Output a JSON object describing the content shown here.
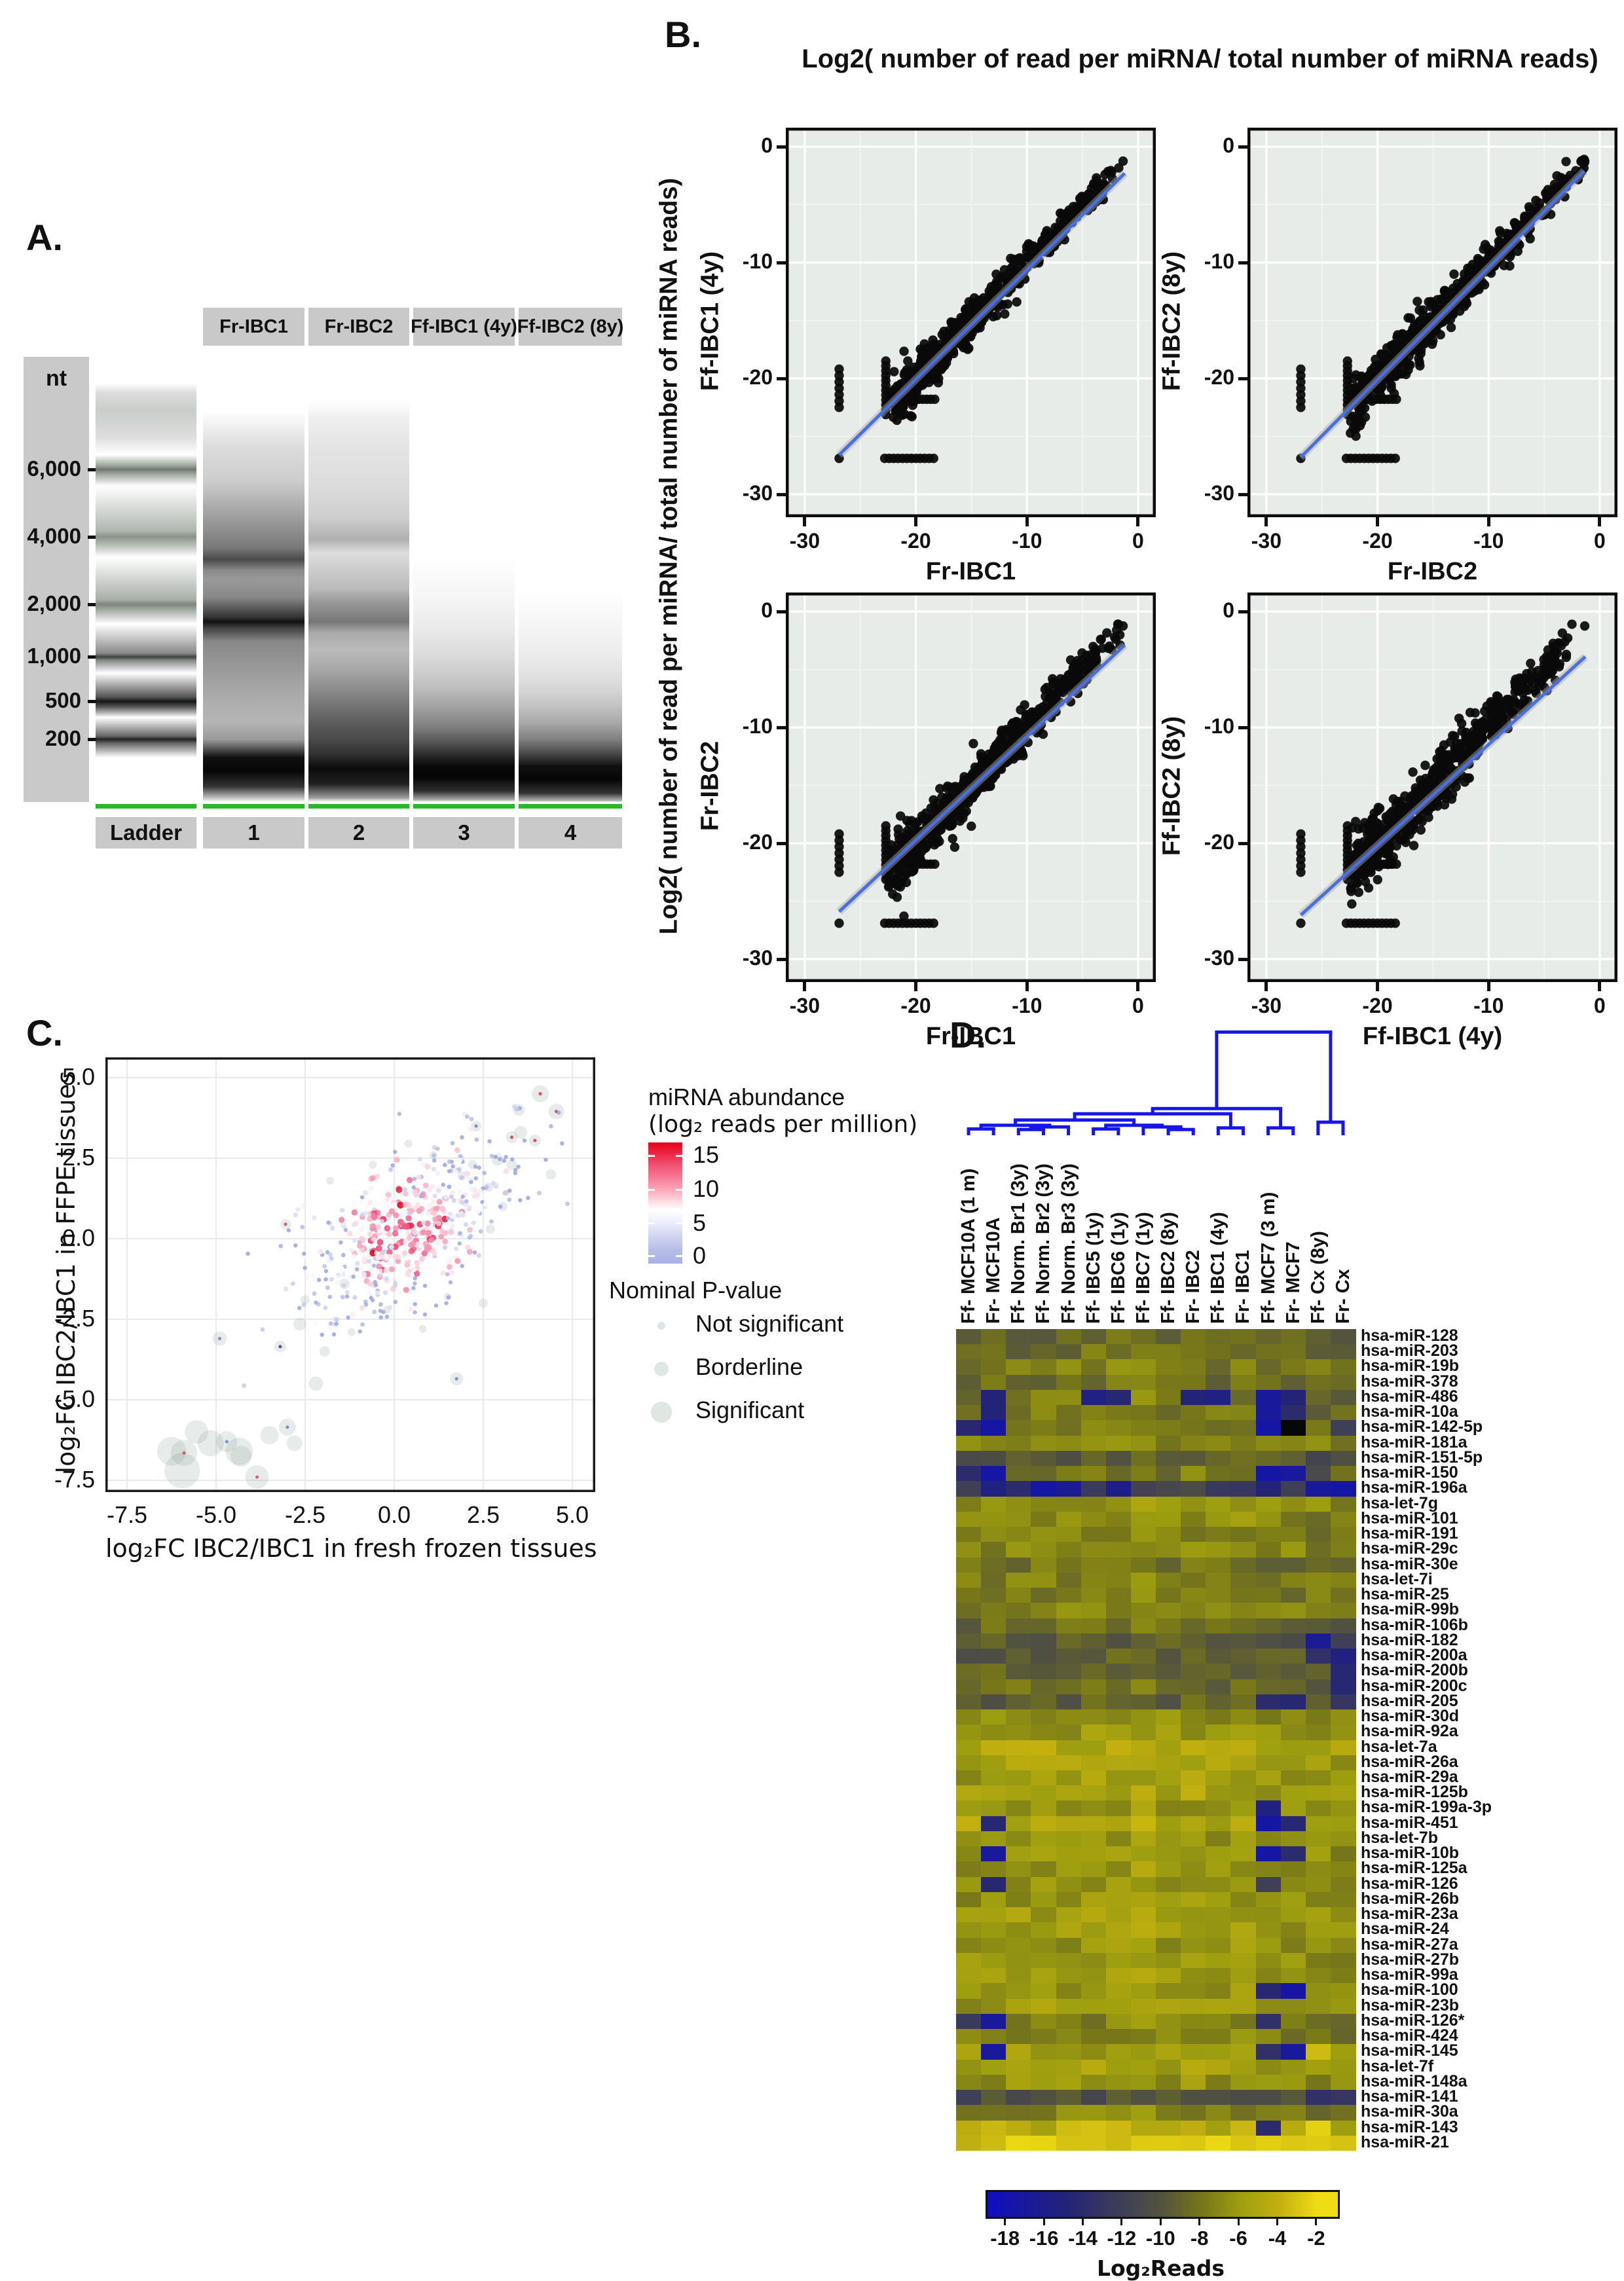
{
  "panel_a": {
    "label": "A.",
    "unit_label": "nt",
    "ladder_values": [
      "6,000",
      "4,000",
      "2,000",
      "1,000",
      "500",
      "200"
    ],
    "lane_headers": [
      "Fr-IBC1",
      "Fr-IBC2",
      "Ff-IBC1 (4y)",
      "Ff-IBC2 (8y)"
    ],
    "lane_footers": [
      "Ladder",
      "1",
      "2",
      "3",
      "4"
    ],
    "marker_line_color": "#2db52d"
  },
  "panel_b": {
    "label": "B.",
    "title": "Log2( number of read per miRNA/ total number of miRNA reads)",
    "shared_ylabel": "Log2( number of read per miRNA/ total number of miRNA reads)",
    "chart_data": {
      "type": "scatter",
      "axis_ticks": [
        0,
        -10,
        -20,
        -30
      ],
      "axis_range": [
        -31.7,
        1.6
      ],
      "point_color": "#0a0a0a",
      "line_color": "#4a6fe3",
      "plot_bg": "#e7ece8",
      "subplots": [
        {
          "x_label": "Fr-IBC1",
          "y_label": "Ff-IBC1 (4y)",
          "line": [
            -26.9,
            -26.6,
            -1.2,
            -2.3
          ],
          "sigma": 1.0
        },
        {
          "x_label": "Fr-IBC2",
          "y_label": "Ff-IBC2 (8y)",
          "line": [
            -26.9,
            -26.8,
            -1.4,
            -2.1
          ],
          "sigma": 1.0
        },
        {
          "x_label": "Fr-IBC1",
          "y_label": "Fr-IBC2",
          "line": [
            -26.9,
            -25.9,
            -1.2,
            -2.9
          ],
          "sigma": 1.15
        },
        {
          "x_label": "Ff-IBC1 (4y)",
          "y_label": "Ff-IBC2 (8y)",
          "line": [
            -26.9,
            -26.2,
            -1.3,
            -3.9
          ],
          "sigma": 1.35
        }
      ],
      "cloud": {
        "n": 620,
        "x_min": -22.5,
        "x_max": -1.2,
        "stripe_x": [
          -26.9,
          -22.7
        ],
        "quantized_row_y": [
          -21.8,
          -26.9
        ],
        "note": "dense correlated diagonal cloud, discrete low-count stripes"
      }
    }
  },
  "panel_c": {
    "label": "C.",
    "chart_data": {
      "type": "scatter",
      "x_label": "log₂FC IBC2/IBC1 in fresh frozen tissues",
      "y_label": "log₂FC IBC2/IBC1 in FFPE tissues",
      "x_ticks": [
        "-7.5",
        "-5.0",
        "-2.5",
        "0.0",
        "2.5",
        "5.0"
      ],
      "y_ticks": [
        "5.0",
        "2.5",
        "0.0",
        "-2.5",
        "-5.0",
        "-7.5"
      ],
      "x_range": [
        -8.1,
        5.65
      ],
      "y_range": [
        -8.15,
        5.65
      ],
      "cloud": {
        "n": 560,
        "center": [
          0.3,
          0.3
        ],
        "sd": [
          1.55,
          1.05
        ],
        "slope": 0.55
      },
      "bubbles": [
        [
          -5.95,
          -7.2,
          27,
          null
        ],
        [
          -6.25,
          -6.6,
          22,
          null
        ],
        [
          -5.9,
          -6.65,
          20,
          "#cc4455"
        ],
        [
          -5.55,
          -6.0,
          18,
          null
        ],
        [
          -5.15,
          -6.35,
          20,
          null
        ],
        [
          -4.7,
          -6.3,
          16,
          "#6677cc"
        ],
        [
          -4.35,
          -6.6,
          21,
          null
        ],
        [
          -4.3,
          -6.75,
          16,
          null
        ],
        [
          -3.85,
          -7.4,
          18,
          "#cc4455"
        ],
        [
          -3.5,
          -6.1,
          14,
          null
        ],
        [
          -3.0,
          -5.85,
          13,
          "#6677cc"
        ],
        [
          -2.8,
          -6.35,
          12,
          null
        ],
        [
          -4.9,
          -3.1,
          11,
          "#6677cc"
        ],
        [
          -3.2,
          -3.35,
          9,
          "#333366"
        ],
        [
          -2.65,
          -2.65,
          10,
          null
        ],
        [
          -2.2,
          -4.5,
          11,
          null
        ],
        [
          -1.95,
          -3.5,
          8,
          null
        ],
        [
          -1.4,
          -1.4,
          8,
          null
        ],
        [
          1.75,
          -4.35,
          10,
          "#6677cc"
        ],
        [
          2.5,
          -2.0,
          7,
          null
        ],
        [
          -3.05,
          0.45,
          8,
          "#cc4455"
        ],
        [
          4.1,
          4.5,
          13,
          "#cc3344"
        ],
        [
          4.55,
          3.95,
          12,
          "#cc3344"
        ],
        [
          3.55,
          3.3,
          10,
          null
        ],
        [
          3.3,
          3.15,
          9,
          "#cc3344"
        ],
        [
          2.9,
          2.45,
          9,
          null
        ],
        [
          2.3,
          3.5,
          8,
          "#6677cc"
        ],
        [
          3.95,
          3.05,
          9,
          "#cc3344"
        ],
        [
          4.4,
          2.0,
          8,
          null
        ],
        [
          3.05,
          1.0,
          7,
          null
        ],
        [
          2.2,
          2.3,
          7,
          null
        ],
        [
          1.9,
          1.95,
          7,
          null
        ],
        [
          3.5,
          4.0,
          9,
          null
        ],
        [
          2.65,
          1.6,
          7,
          null
        ],
        [
          0.4,
          2.95,
          6,
          null
        ],
        [
          -0.6,
          2.3,
          6,
          null
        ],
        [
          1.1,
          2.6,
          6,
          null
        ],
        [
          -1.8,
          1.8,
          6,
          null
        ],
        [
          -2.5,
          -1.9,
          7,
          null
        ],
        [
          0.8,
          -2.8,
          6,
          null
        ],
        [
          1.5,
          -1.8,
          6,
          null
        ],
        [
          2.7,
          0.3,
          7,
          null
        ],
        [
          3.3,
          2.3,
          8,
          null
        ],
        [
          -0.2,
          -2.2,
          6,
          null
        ],
        [
          -1.2,
          -2.9,
          6,
          null
        ]
      ]
    },
    "legend": {
      "abundance_title": "miRNA abundance",
      "abundance_subtitle": "(log₂ reads per million)",
      "abundance_ticks": [
        "15",
        "10",
        "5",
        "0"
      ],
      "pvalue_title": "Nominal P-value",
      "pvalue_items": [
        "Not significant",
        "Borderline",
        "Significant"
      ],
      "bubble_color": "#dfe7e3"
    }
  },
  "panel_d": {
    "label": "D.",
    "dendrogram_color": "#1616e8",
    "columns": [
      "Ff- MCF10A (1 m)",
      "Fr- MCF10A",
      "Ff- Norm. Br1 (3y)",
      "Ff- Norm. Br2 (3y)",
      "Ff- Norm. Br3 (3y)",
      "Ff- IBC5 (1y)",
      "Ff- IBC6 (1y)",
      "Ff- IBC7 (1y)",
      "Ff- IBC2 (8y)",
      "Fr- IBC2",
      "Ff- IBC1 (4y)",
      "Fr- IBC1",
      "Ff- MCF7 (3 m)",
      "Fr- MCF7",
      "Ff- Cx (8y)",
      "Fr- Cx"
    ],
    "rows": [
      "hsa-miR-128",
      "hsa-miR-203",
      "hsa-miR-19b",
      "hsa-miR-378",
      "hsa-miR-486",
      "hsa-miR-10a",
      "hsa-miR-142-5p",
      "hsa-miR-181a",
      "hsa-miR-151-5p",
      "hsa-miR-150",
      "hsa-miR-196a",
      "hsa-let-7g",
      "hsa-miR-101",
      "hsa-miR-191",
      "hsa-miR-29c",
      "hsa-miR-30e",
      "hsa-let-7i",
      "hsa-miR-25",
      "hsa-miR-99b",
      "hsa-miR-106b",
      "hsa-miR-182",
      "hsa-miR-200a",
      "hsa-miR-200b",
      "hsa-miR-200c",
      "hsa-miR-205",
      "hsa-miR-30d",
      "hsa-miR-92a",
      "hsa-let-7a",
      "hsa-miR-26a",
      "hsa-miR-29a",
      "hsa-miR-125b",
      "hsa-miR-199a-3p",
      "hsa-miR-451",
      "hsa-let-7b",
      "hsa-miR-10b",
      "hsa-miR-125a",
      "hsa-miR-126",
      "hsa-miR-26b",
      "hsa-miR-23a",
      "hsa-miR-24",
      "hsa-miR-27a",
      "hsa-miR-27b",
      "hsa-miR-99a",
      "hsa-miR-100",
      "hsa-miR-23b",
      "hsa-miR-126*",
      "hsa-miR-424",
      "hsa-miR-145",
      "hsa-let-7f",
      "hsa-miR-148a",
      "hsa-miR-141",
      "hsa-miR-30a",
      "hsa-miR-143",
      "hsa-miR-21"
    ],
    "heatmap": {
      "type": "heatmap",
      "value_label": "Log₂Reads",
      "colorbar_ticks": [
        "-18",
        "-16",
        "-14",
        "-12",
        "-10",
        "-8",
        "-6",
        "-4",
        "-2"
      ],
      "row_base": [
        -9,
        -8.5,
        -7.5,
        -8.5,
        -8,
        -8,
        -7.5,
        -7,
        -9.5,
        -8,
        -12,
        -6.5,
        -7,
        -7.5,
        -7,
        -8,
        -7.5,
        -7.5,
        -7,
        -8.5,
        -9.5,
        -9.5,
        -9,
        -8.5,
        -9.5,
        -7,
        -6.5,
        -5,
        -5.5,
        -6,
        -5.5,
        -6.5,
        -5.5,
        -6.5,
        -6,
        -6.5,
        -6.5,
        -6.5,
        -6,
        -6,
        -6.5,
        -6,
        -6,
        -6.5,
        -6,
        -7.5,
        -7.5,
        -6,
        -5.5,
        -6.5,
        -10.5,
        -7.5,
        -4.5,
        -3.2
      ],
      "col_offset": [
        -0.4,
        -0.2,
        0,
        0,
        0,
        0.2,
        0.2,
        0.6,
        0,
        0.3,
        -0.2,
        0.2,
        -0.4,
        -0.4,
        -0.6,
        -0.9
      ],
      "special_cells": [
        [
          5,
          2,
          -15
        ],
        [
          5,
          6,
          -15.5
        ],
        [
          5,
          7,
          -14.5
        ],
        [
          5,
          10,
          -15
        ],
        [
          5,
          11,
          -15.5
        ],
        [
          5,
          13,
          -17
        ],
        [
          5,
          14,
          -15
        ],
        [
          6,
          2,
          -15
        ],
        [
          6,
          13,
          -17
        ],
        [
          6,
          14,
          -14
        ],
        [
          7,
          1,
          -14.5
        ],
        [
          7,
          2,
          -17.5
        ],
        [
          7,
          13,
          -17.5
        ],
        [
          7,
          14,
          -19.4
        ],
        [
          7,
          16,
          -12
        ],
        [
          9,
          1,
          -11
        ],
        [
          9,
          15,
          -11.5
        ],
        [
          10,
          1,
          -14
        ],
        [
          10,
          2,
          -17.5
        ],
        [
          10,
          13,
          -17.5
        ],
        [
          10,
          14,
          -17
        ],
        [
          10,
          15,
          -11
        ],
        [
          11,
          1,
          -12
        ],
        [
          11,
          2,
          -15.5
        ],
        [
          11,
          3,
          -14
        ],
        [
          11,
          4,
          -17.5
        ],
        [
          11,
          5,
          -16.5
        ],
        [
          11,
          7,
          -16
        ],
        [
          11,
          13,
          -15
        ],
        [
          11,
          14,
          -12
        ],
        [
          11,
          15,
          -17
        ],
        [
          11,
          16,
          -17.5
        ],
        [
          21,
          15,
          -16.5
        ],
        [
          21,
          16,
          -12
        ],
        [
          22,
          15,
          -13.5
        ],
        [
          22,
          16,
          -15.5
        ],
        [
          23,
          16,
          -14.5
        ],
        [
          24,
          16,
          -14.5
        ],
        [
          25,
          13,
          -14
        ],
        [
          25,
          14,
          -14.5
        ],
        [
          25,
          16,
          -13
        ],
        [
          32,
          13,
          -15.5
        ],
        [
          33,
          1,
          -4
        ],
        [
          33,
          2,
          -14.5
        ],
        [
          33,
          13,
          -17.5
        ],
        [
          33,
          14,
          -14.5
        ],
        [
          35,
          2,
          -17
        ],
        [
          35,
          13,
          -17.5
        ],
        [
          35,
          14,
          -14
        ],
        [
          37,
          2,
          -14.5
        ],
        [
          37,
          13,
          -12
        ],
        [
          44,
          13,
          -14.5
        ],
        [
          44,
          14,
          -17.5
        ],
        [
          46,
          1,
          -12.5
        ],
        [
          46,
          2,
          -17
        ],
        [
          46,
          13,
          -13.5
        ],
        [
          48,
          2,
          -17
        ],
        [
          48,
          13,
          -13.5
        ],
        [
          48,
          14,
          -17
        ],
        [
          48,
          15,
          -3.5
        ],
        [
          51,
          1,
          -12
        ],
        [
          51,
          15,
          -13.5
        ],
        [
          51,
          16,
          -13
        ],
        [
          53,
          13,
          -14
        ],
        [
          53,
          15,
          -2.5
        ],
        [
          54,
          15,
          -2.8
        ]
      ],
      "linkage": {
        "h": 0.04,
        "c": [
          {
            "h": 0.77,
            "c": [
              {
                "h": 0.82,
                "c": [
                  {
                    "h": 0.88,
                    "c": [
                      {
                        "h": 0.93,
                        "c": [
                          {
                            "h": 0.965,
                            "c": [
                              {
                                "leaf": 1
                              },
                              {
                                "leaf": 2
                              }
                            ]
                          },
                          {
                            "h": 0.945,
                            "c": [
                              {
                                "h": 0.97,
                                "c": [
                                  {
                                    "leaf": 3
                                  },
                                  {
                                    "leaf": 4
                                  }
                                ]
                              },
                              {
                                "leaf": 5
                              }
                            ]
                          }
                        ]
                      },
                      {
                        "h": 0.93,
                        "c": [
                          {
                            "h": 0.965,
                            "c": [
                              {
                                "leaf": 6
                              },
                              {
                                "leaf": 7
                              }
                            ]
                          },
                          {
                            "h": 0.945,
                            "c": [
                              {
                                "leaf": 8
                              },
                              {
                                "h": 0.97,
                                "c": [
                                  {
                                    "leaf": 9
                                  },
                                  {
                                    "leaf": 10
                                  }
                                ]
                              }
                            ]
                          }
                        ]
                      }
                    ]
                  },
                  {
                    "h": 0.955,
                    "c": [
                      {
                        "leaf": 11
                      },
                      {
                        "leaf": 12
                      }
                    ]
                  }
                ]
              },
              {
                "h": 0.955,
                "c": [
                  {
                    "leaf": 13
                  },
                  {
                    "leaf": 14
                  }
                ]
              }
            ]
          },
          {
            "h": 0.9,
            "c": [
              {
                "leaf": 15
              },
              {
                "leaf": 16
              }
            ]
          }
        ]
      }
    }
  }
}
